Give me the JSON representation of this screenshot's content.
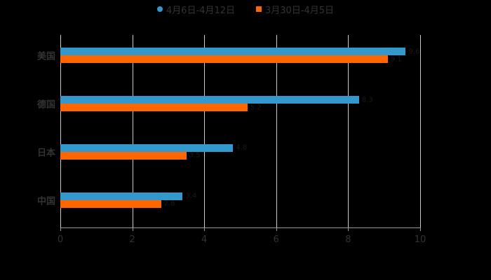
{
  "legend": {
    "items": [
      {
        "label": "4月6日-4月12日",
        "color": "#3399CC",
        "shape": "circle"
      },
      {
        "label": "3月30日-4月5日",
        "color": "#FF6600",
        "shape": "square"
      }
    ]
  },
  "axis": {
    "ticks": [
      "0",
      "2",
      "4",
      "6",
      "8",
      "10"
    ]
  },
  "categories": [
    "美国",
    "德国",
    "日本",
    "中国"
  ],
  "chart_data": {
    "type": "bar",
    "orientation": "horizontal",
    "title": "",
    "xlabel": "",
    "ylabel": "",
    "categories": [
      "美国",
      "德国",
      "日本",
      "中国"
    ],
    "series": [
      {
        "name": "4月6日-4月12日",
        "color": "#3399CC",
        "values": [
          9.6,
          8.3,
          4.8,
          3.4
        ]
      },
      {
        "name": "3月30日-4月5日",
        "color": "#FF6600",
        "values": [
          9.1,
          5.2,
          3.5,
          2.8
        ]
      }
    ],
    "xlim": [
      0,
      10
    ],
    "x_ticks": [
      0,
      2,
      4,
      6,
      8,
      10
    ],
    "grid": true,
    "legend_position": "top"
  }
}
